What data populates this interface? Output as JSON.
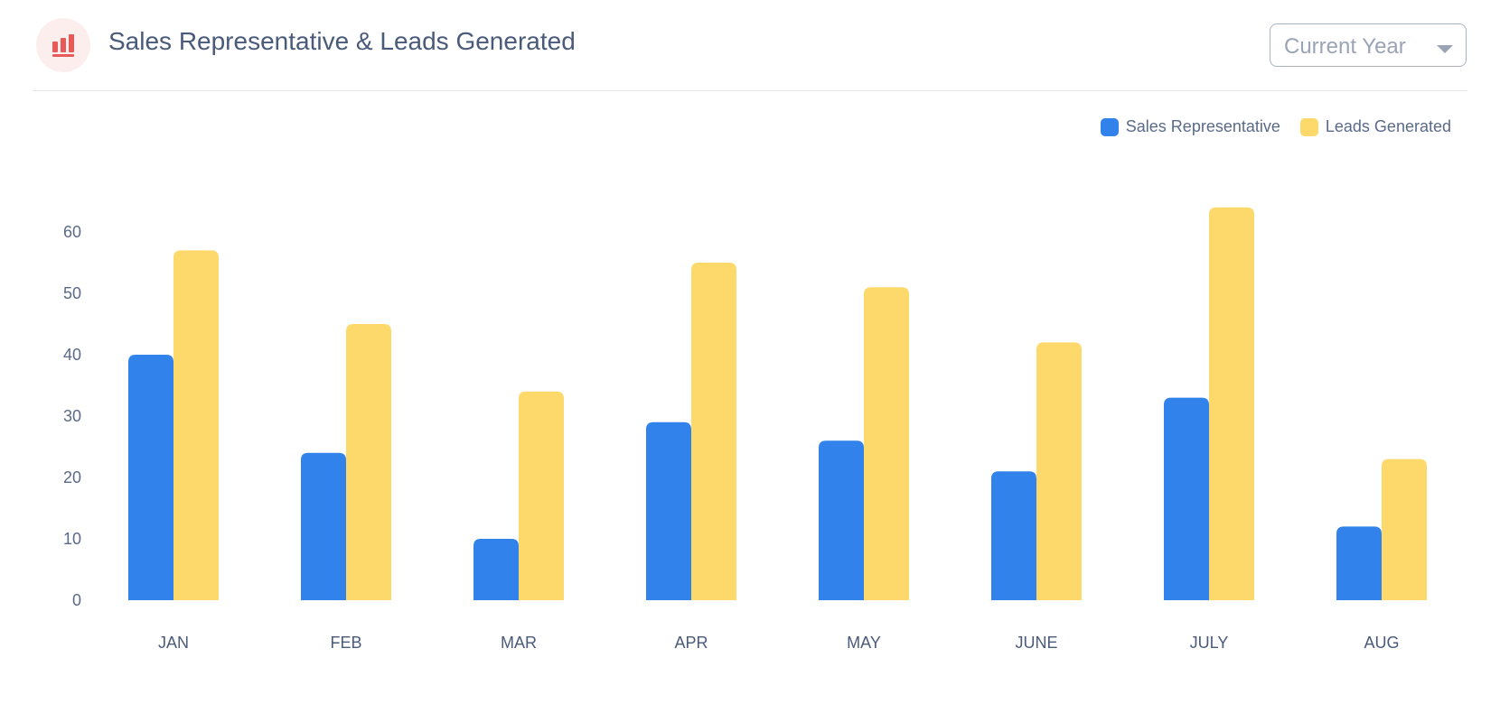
{
  "header": {
    "title": "Sales Representative & Leads Generated",
    "icon": "bar-chart-icon",
    "icon_color": "#e85a5a"
  },
  "year_select": {
    "value": "Current Year"
  },
  "colors": {
    "sales": "#3182ea",
    "leads": "#fdd96b"
  },
  "chart_data": {
    "type": "bar",
    "title": "",
    "xlabel": "",
    "ylabel": "",
    "ylim": [
      0,
      65
    ],
    "yticks": [
      0,
      10,
      20,
      30,
      40,
      50,
      60
    ],
    "grid": false,
    "legend_position": "top-right",
    "categories": [
      "JAN",
      "FEB",
      "MAR",
      "APR",
      "MAY",
      "JUNE",
      "JULY",
      "AUG"
    ],
    "series": [
      {
        "name": "Sales Representative",
        "values": [
          40,
          24,
          10,
          29,
          26,
          21,
          33,
          12
        ]
      },
      {
        "name": "Leads Generated",
        "values": [
          57,
          45,
          34,
          55,
          51,
          42,
          64,
          23
        ]
      }
    ]
  }
}
